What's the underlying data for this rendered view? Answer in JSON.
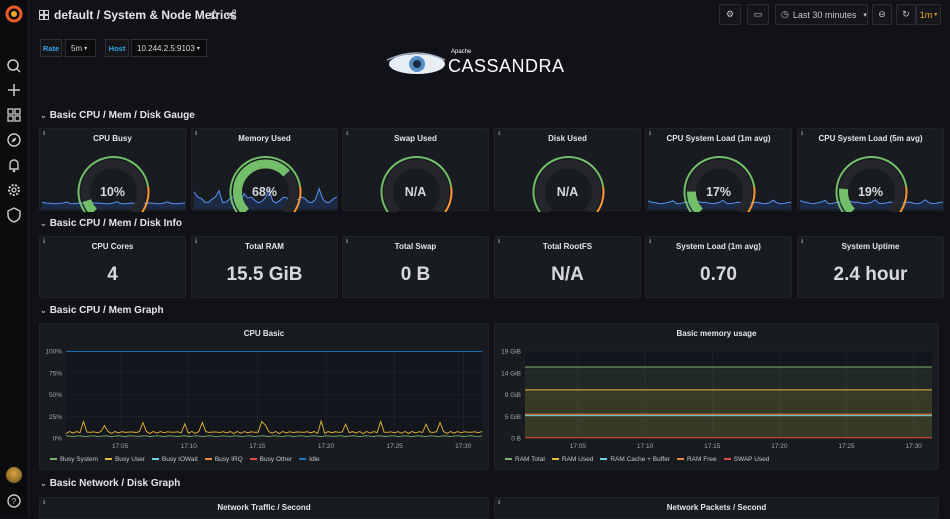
{
  "topbar": {
    "title": "default / System & Node Metrics",
    "time_range": "Last 30 minutes",
    "refresh": "1m"
  },
  "variables": {
    "rate_label": "Rate",
    "rate_value": "5m",
    "host_label": "Host",
    "host_value": "10.244.2.5:9103"
  },
  "logo": {
    "small": "Apache",
    "big": "CASSANDRA"
  },
  "rows": {
    "gauge": "Basic CPU / Mem / Disk Gauge",
    "info": "Basic CPU / Mem / Disk Info",
    "graph": "Basic CPU / Mem Graph",
    "network": "Basic Network / Disk Graph"
  },
  "gauges": [
    {
      "title": "CPU Busy",
      "value": "10%",
      "fraction": 0.1
    },
    {
      "title": "Memory Used",
      "value": "68%",
      "fraction": 0.68
    },
    {
      "title": "Swap Used",
      "value": "N/A",
      "fraction": 0
    },
    {
      "title": "Disk Used",
      "value": "N/A",
      "fraction": 0
    },
    {
      "title": "CPU System Load (1m avg)",
      "value": "17%",
      "fraction": 0.17
    },
    {
      "title": "CPU System Load (5m avg)",
      "value": "19%",
      "fraction": 0.19
    }
  ],
  "stats": [
    {
      "title": "CPU Cores",
      "value": "4"
    },
    {
      "title": "Total RAM",
      "value": "15.5 GiB"
    },
    {
      "title": "Total Swap",
      "value": "0 B"
    },
    {
      "title": "Total RootFS",
      "value": "N/A"
    },
    {
      "title": "System Load (1m avg)",
      "value": "0.70"
    },
    {
      "title": "System Uptime",
      "value": "2.4 hour"
    }
  ],
  "cpu_graph": {
    "title": "CPU Basic",
    "y_ticks": [
      "100%",
      "75%",
      "50%",
      "25%",
      "0%"
    ],
    "x_ticks": [
      "17:05",
      "17:10",
      "17:15",
      "17:20",
      "17:25",
      "17:30"
    ],
    "legend": [
      {
        "name": "Busy System",
        "color": "#7eb26d"
      },
      {
        "name": "Busy User",
        "color": "#eab839"
      },
      {
        "name": "Busy IOWait",
        "color": "#6ed0e0"
      },
      {
        "name": "Busy IRQ",
        "color": "#ef843c"
      },
      {
        "name": "Busy Other",
        "color": "#e24d42"
      },
      {
        "name": "Idle",
        "color": "#1f78c1"
      }
    ]
  },
  "mem_graph": {
    "title": "Basic memory usage",
    "y_ticks": [
      "19 GiB",
      "14 GiB",
      "9 GiB",
      "5 GiB",
      "0 B"
    ],
    "x_ticks": [
      "17:05",
      "17:10",
      "17:15",
      "17:20",
      "17:25",
      "17:30"
    ],
    "legend": [
      {
        "name": "RAM Total",
        "color": "#7eb26d"
      },
      {
        "name": "RAM Used",
        "color": "#eab839"
      },
      {
        "name": "RAM Cache + Buffer",
        "color": "#6ed0e0"
      },
      {
        "name": "RAM Free",
        "color": "#ef843c"
      },
      {
        "name": "SWAP Used",
        "color": "#e24d42"
      }
    ]
  },
  "network_panels": [
    "Network Traffic / Second",
    "Network Packets / Second"
  ],
  "colors": {
    "green": "#73bf69",
    "orange": "#ff9830",
    "blue": "#5794f2",
    "accent": "#33a2e5"
  }
}
